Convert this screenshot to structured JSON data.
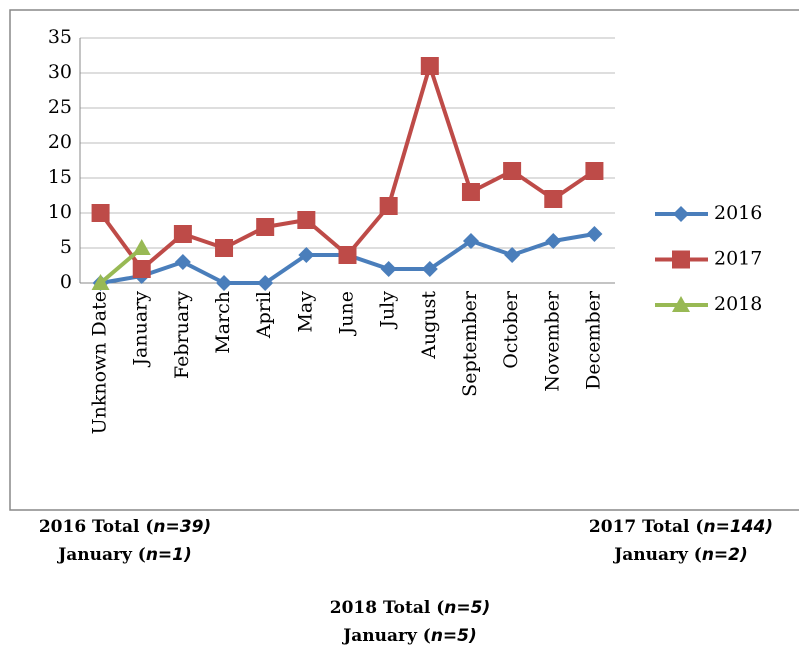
{
  "chart_data": {
    "type": "line",
    "categories": [
      "Unknown Date",
      "January",
      "February",
      "March",
      "April",
      "May",
      "June",
      "July",
      "August",
      "September",
      "October",
      "November",
      "December"
    ],
    "series": [
      {
        "name": "2016",
        "color": "#4a7ebb",
        "marker": "diamond",
        "values": [
          0,
          1,
          3,
          0,
          0,
          4,
          4,
          2,
          2,
          6,
          4,
          6,
          7
        ]
      },
      {
        "name": "2017",
        "color": "#be4b48",
        "marker": "square",
        "values": [
          10,
          2,
          7,
          5,
          8,
          9,
          4,
          11,
          31,
          13,
          16,
          12,
          16
        ]
      },
      {
        "name": "2018",
        "color": "#98b954",
        "marker": "triangle",
        "values": [
          0,
          5,
          null,
          null,
          null,
          null,
          null,
          null,
          null,
          null,
          null,
          null,
          null
        ]
      }
    ],
    "ylim": [
      0,
      35
    ],
    "yticks": [
      0,
      5,
      10,
      15,
      20,
      25,
      30,
      35
    ],
    "grid": true,
    "legend": "right",
    "annotations": [
      {
        "total": "2016 Total (",
        "total_n": "n=39)",
        "month": "January (",
        "month_n": "n=1)"
      },
      {
        "total": "2017 Total (",
        "total_n": "n=144)",
        "month": "January (",
        "month_n": "n=2)"
      },
      {
        "total": "2018 Total (",
        "total_n": "n=5)",
        "month": "January (",
        "month_n": "n=5)"
      }
    ]
  }
}
